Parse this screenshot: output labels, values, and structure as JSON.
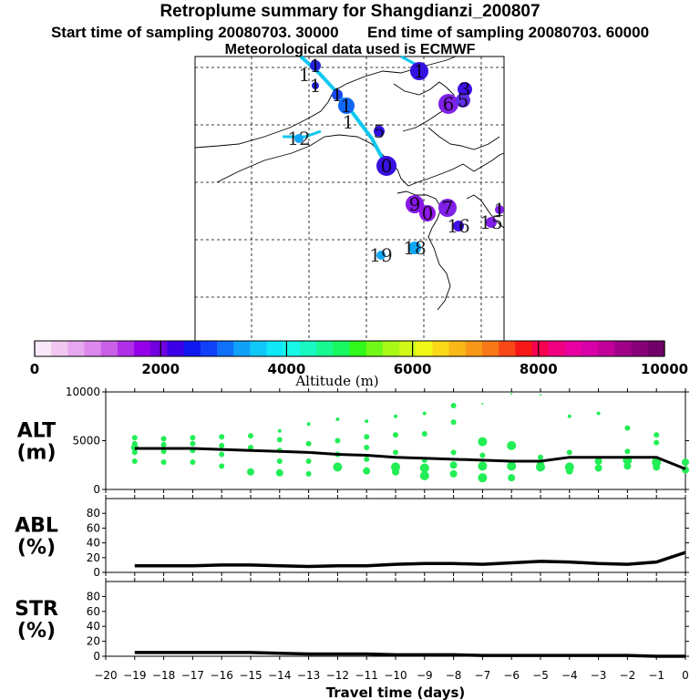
{
  "header": {
    "title": "Retroplume summary for Shangdianzi_200807",
    "start_label": "Start time of sampling 20080703. 30000",
    "end_label": "End time of sampling 20080703. 60000",
    "met_label": "Meteorological data used is ECMWF"
  },
  "colorbar": {
    "ticks": [
      "0",
      "2000",
      "4000",
      "6000",
      "8000",
      "10000"
    ],
    "label": "Altitude (m)",
    "colors": [
      "#f8e8f8",
      "#f0c8f0",
      "#e8a8f0",
      "#dc88ec",
      "#c860e8",
      "#b030e8",
      "#9400e8",
      "#7000e0",
      "#3c00e8",
      "#1018f0",
      "#1040f8",
      "#1070f8",
      "#10a0f8",
      "#10c8f8",
      "#10e8f8",
      "#18f8e8",
      "#18f8c0",
      "#18f890",
      "#18f860",
      "#30f818",
      "#70f818",
      "#a8f818",
      "#d0f818",
      "#f0f818",
      "#f8d818",
      "#f8b818",
      "#f89818",
      "#f87818",
      "#f84818",
      "#f81818",
      "#f80050",
      "#f00080",
      "#e800a0",
      "#d800a8",
      "#c00098",
      "#a00088",
      "#880078",
      "#700068"
    ]
  },
  "map": {
    "labels": [
      {
        "text": "1",
        "x": 346,
        "y": 72,
        "c": "#2222d8",
        "r": 6
      },
      {
        "text": "1",
        "x": 460,
        "y": 78,
        "c": "#3310e0",
        "r": 10
      },
      {
        "text": "1",
        "x": 334,
        "y": 82,
        "c": "#101010",
        "r": 0
      },
      {
        "text": "1",
        "x": 346,
        "y": 94,
        "c": "#2222d8",
        "r": 4
      },
      {
        "text": "1",
        "x": 370,
        "y": 104,
        "c": "#1848f0",
        "r": 6
      },
      {
        "text": "1",
        "x": 380,
        "y": 116,
        "c": "#1068f8",
        "r": 9
      },
      {
        "text": "1",
        "x": 382,
        "y": 134,
        "c": "#1070f8",
        "r": 0
      },
      {
        "text": "3",
        "x": 510,
        "y": 98,
        "c": "#4010e8",
        "r": 8
      },
      {
        "text": "6",
        "x": 492,
        "y": 114,
        "c": "#8020e8",
        "r": 11
      },
      {
        "text": "5",
        "x": 508,
        "y": 110,
        "c": "#6030e8",
        "r": 8
      },
      {
        "text": "5",
        "x": 416,
        "y": 144,
        "c": "#3010e8",
        "r": 6
      },
      {
        "text": "12",
        "x": 328,
        "y": 152,
        "c": "#10a8f8",
        "r": 5
      },
      {
        "text": "0",
        "x": 424,
        "y": 182,
        "c": "#3810e0",
        "r": 11
      },
      {
        "text": "9",
        "x": 455,
        "y": 224,
        "c": "#8818e8",
        "r": 10
      },
      {
        "text": "0",
        "x": 469,
        "y": 234,
        "c": "#9018e8",
        "r": 9
      },
      {
        "text": "7",
        "x": 491,
        "y": 228,
        "c": "#8020e8",
        "r": 10
      },
      {
        "text": "16",
        "x": 503,
        "y": 248,
        "c": "#4010e8",
        "r": 6
      },
      {
        "text": "15",
        "x": 539,
        "y": 244,
        "c": "#8020e8",
        "r": 6
      },
      {
        "text": "1",
        "x": 548,
        "y": 230,
        "c": "#8020e8",
        "r": 5
      },
      {
        "text": "19",
        "x": 418,
        "y": 280,
        "c": "#10a8f8",
        "r": 5
      },
      {
        "text": "18",
        "x": 455,
        "y": 272,
        "c": "#10a8f8",
        "r": 7
      }
    ]
  },
  "chart_data": [
    {
      "type": "scatter",
      "ylabel_line1": "ALT",
      "ylabel_line2": "(m)",
      "ylim": [
        0,
        10000
      ],
      "yticks": [
        "0",
        "5000",
        "10000"
      ],
      "x": [
        -19,
        -18,
        -17,
        -16,
        -15,
        -14,
        -13,
        -12,
        -11,
        -10,
        -9,
        -8,
        -7,
        -6,
        -5,
        -4,
        -3,
        -2,
        -1,
        0
      ],
      "median_line": [
        4200,
        4200,
        4200,
        4100,
        4000,
        3900,
        3800,
        3600,
        3500,
        3300,
        3200,
        3100,
        3000,
        2900,
        2900,
        3300,
        3300,
        3300,
        3300,
        2100
      ],
      "points": [
        [
          -19,
          5300,
          3
        ],
        [
          -19,
          4700,
          3
        ],
        [
          -19,
          4300,
          4
        ],
        [
          -19,
          3800,
          3
        ],
        [
          -19,
          2900,
          3
        ],
        [
          -18,
          5200,
          3
        ],
        [
          -18,
          4600,
          3
        ],
        [
          -18,
          3900,
          3
        ],
        [
          -18,
          2800,
          3
        ],
        [
          -17,
          5300,
          3
        ],
        [
          -17,
          4700,
          3
        ],
        [
          -17,
          4000,
          3
        ],
        [
          -17,
          2800,
          3
        ],
        [
          -16,
          5400,
          3
        ],
        [
          -16,
          4500,
          3
        ],
        [
          -16,
          3600,
          3
        ],
        [
          -16,
          2400,
          3
        ],
        [
          -15,
          5500,
          3
        ],
        [
          -15,
          4300,
          3
        ],
        [
          -15,
          1800,
          4
        ],
        [
          -14,
          6000,
          2
        ],
        [
          -14,
          5100,
          3
        ],
        [
          -14,
          4000,
          3
        ],
        [
          -14,
          2900,
          3
        ],
        [
          -14,
          1700,
          4
        ],
        [
          -13,
          6700,
          2
        ],
        [
          -13,
          4700,
          3
        ],
        [
          -13,
          2900,
          3
        ],
        [
          -13,
          1600,
          3
        ],
        [
          -12,
          7200,
          2
        ],
        [
          -12,
          5000,
          3
        ],
        [
          -12,
          3600,
          3
        ],
        [
          -12,
          2300,
          5
        ],
        [
          -11,
          7000,
          2
        ],
        [
          -11,
          5400,
          3
        ],
        [
          -11,
          4300,
          3
        ],
        [
          -11,
          3100,
          3
        ],
        [
          -11,
          1900,
          4
        ],
        [
          -10,
          7500,
          2
        ],
        [
          -10,
          5600,
          3
        ],
        [
          -10,
          3800,
          3
        ],
        [
          -10,
          2300,
          5
        ],
        [
          -10,
          1800,
          4
        ],
        [
          -9,
          7800,
          2
        ],
        [
          -9,
          5700,
          3
        ],
        [
          -9,
          3000,
          3
        ],
        [
          -9,
          2200,
          5
        ],
        [
          -9,
          1400,
          5
        ],
        [
          -8,
          8600,
          3
        ],
        [
          -8,
          6900,
          3
        ],
        [
          -8,
          3800,
          3
        ],
        [
          -8,
          2500,
          4
        ],
        [
          -8,
          1600,
          4
        ],
        [
          -7,
          8800,
          1
        ],
        [
          -7,
          4900,
          5
        ],
        [
          -7,
          3500,
          3
        ],
        [
          -7,
          2400,
          5
        ],
        [
          -7,
          1200,
          5
        ],
        [
          -6,
          9800,
          1
        ],
        [
          -6,
          4500,
          5
        ],
        [
          -6,
          2400,
          5
        ],
        [
          -6,
          1200,
          4
        ],
        [
          -5,
          9700,
          1
        ],
        [
          -5,
          3300,
          3
        ],
        [
          -5,
          2600,
          4
        ],
        [
          -5,
          2300,
          5
        ],
        [
          -4,
          7500,
          2
        ],
        [
          -4,
          3800,
          3
        ],
        [
          -4,
          2300,
          5
        ],
        [
          -4,
          1900,
          4
        ],
        [
          -3,
          7800,
          2
        ],
        [
          -3,
          2900,
          4
        ],
        [
          -3,
          2200,
          4
        ],
        [
          -2,
          6300,
          3
        ],
        [
          -2,
          3900,
          3
        ],
        [
          -2,
          3000,
          5
        ],
        [
          -2,
          2400,
          4
        ],
        [
          -1,
          5600,
          3
        ],
        [
          -1,
          4800,
          3
        ],
        [
          -1,
          2800,
          5
        ],
        [
          -1,
          2300,
          4
        ],
        [
          0,
          2800,
          4
        ],
        [
          0,
          2000,
          4
        ]
      ]
    },
    {
      "type": "line",
      "ylabel_line1": "ABL",
      "ylabel_line2": "(%)",
      "ylim": [
        0,
        100
      ],
      "yticks": [
        "0",
        "20",
        "40",
        "60",
        "80"
      ],
      "x": [
        -19,
        -18,
        -17,
        -16,
        -15,
        -14,
        -13,
        -12,
        -11,
        -10,
        -9,
        -8,
        -7,
        -6,
        -5,
        -4,
        -3,
        -2,
        -1,
        0
      ],
      "values": [
        9,
        9,
        9,
        10,
        10,
        9,
        8,
        9,
        9,
        11,
        12,
        12,
        11,
        13,
        15,
        14,
        12,
        11,
        14,
        27
      ]
    },
    {
      "type": "line",
      "ylabel_line1": "STR",
      "ylabel_line2": "(%)",
      "ylim": [
        0,
        100
      ],
      "yticks": [
        "0",
        "20",
        "40",
        "60",
        "80"
      ],
      "x": [
        -19,
        -18,
        -17,
        -16,
        -15,
        -14,
        -13,
        -12,
        -11,
        -10,
        -9,
        -8,
        -7,
        -6,
        -5,
        -4,
        -3,
        -2,
        -1,
        0
      ],
      "values": [
        5,
        5,
        5,
        5,
        5,
        4,
        3,
        3,
        3,
        2,
        2,
        2,
        1,
        1,
        1,
        1,
        1,
        1,
        0,
        0
      ]
    }
  ],
  "xaxis": {
    "ticks": [
      "−20",
      "−19",
      "−18",
      "−17",
      "−16",
      "−15",
      "−14",
      "−13",
      "−12",
      "−11",
      "−10",
      "−9",
      "−8",
      "−7",
      "−6",
      "−5",
      "−4",
      "−3",
      "−2",
      "−1",
      "0"
    ],
    "label": "Travel time (days)"
  },
  "colors": {
    "scatter": "#22ee55",
    "line": "#000000",
    "trajectory": "#10c8f0"
  }
}
